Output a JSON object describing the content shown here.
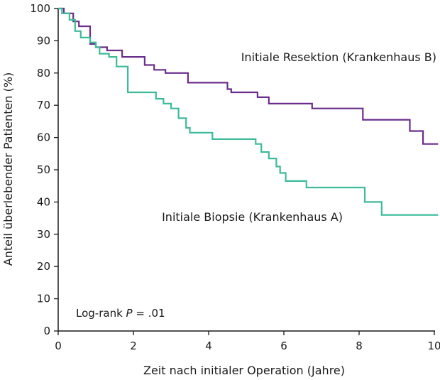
{
  "chart_data": {
    "type": "line",
    "step": true,
    "title": "",
    "xlabel": "Zeit nach initialer Operation (Jahre)",
    "ylabel": "Anteil überlebender Patienten (%)",
    "xlim": [
      0,
      10
    ],
    "ylim": [
      0,
      100
    ],
    "xticks": [
      0,
      2,
      4,
      6,
      8,
      10
    ],
    "yticks": [
      0,
      10,
      20,
      30,
      40,
      50,
      60,
      70,
      80,
      90,
      100
    ],
    "grid": false,
    "legend": "inline labels",
    "annotation": {
      "prefix": "Log-rank ",
      "italic": "P",
      "suffix": " = .01"
    },
    "series": [
      {
        "name": "Initiale Resektion (Krankenhaus B)",
        "color": "#6b2d8b",
        "x": [
          0,
          0.15,
          0.4,
          0.55,
          0.85,
          1.0,
          1.3,
          1.7,
          2.3,
          2.55,
          2.85,
          3.45,
          4.5,
          4.6,
          5.3,
          5.6,
          6.75,
          8.1,
          9.35,
          9.7,
          10.1
        ],
        "y": [
          100,
          98.5,
          96,
          94.5,
          89,
          88,
          87,
          85,
          82.5,
          81,
          80,
          77,
          75,
          74,
          72.5,
          70.5,
          69,
          65.5,
          62,
          58,
          58
        ]
      },
      {
        "name": "Initiale Biopsie (Krankenhaus A)",
        "color": "#3dbb9b",
        "x": [
          0,
          0.1,
          0.3,
          0.45,
          0.6,
          0.85,
          1.0,
          1.1,
          1.35,
          1.55,
          1.85,
          2.6,
          2.8,
          3.0,
          3.2,
          3.4,
          3.5,
          4.1,
          5.25,
          5.4,
          5.6,
          5.8,
          5.9,
          6.05,
          6.6,
          8.15,
          8.6,
          10.1
        ],
        "y": [
          100,
          98.5,
          96.5,
          93,
          91,
          89.5,
          88,
          86,
          85,
          82,
          74,
          72,
          70.5,
          69,
          66,
          63,
          61.5,
          59.5,
          58,
          55.5,
          53.5,
          51,
          49,
          46.5,
          44.5,
          40,
          36,
          36
        ]
      }
    ]
  }
}
